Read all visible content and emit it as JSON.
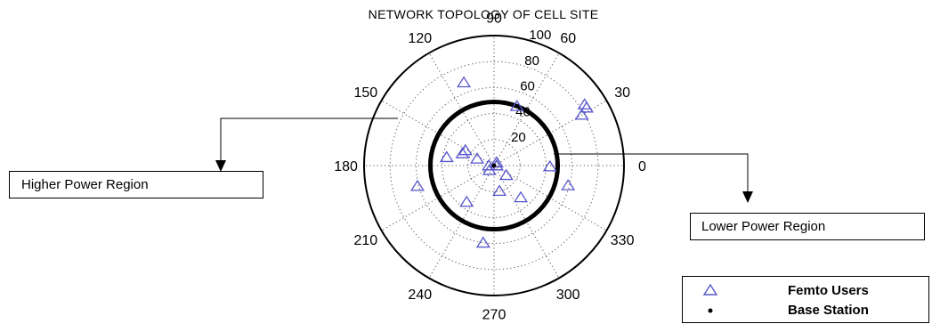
{
  "chart_data": {
    "type": "scatter",
    "projection": "polar",
    "title": "NETWORK TOPOLOGY OF CELL SITE",
    "angle_ticks": [
      "0",
      "30",
      "60",
      "90",
      "120",
      "150",
      "180",
      "210",
      "240",
      "270",
      "300",
      "330"
    ],
    "angle_tick_values": [
      0,
      30,
      60,
      90,
      120,
      150,
      180,
      210,
      240,
      270,
      300,
      330
    ],
    "radial_ticks": [
      "20",
      "40",
      "60",
      "80",
      "100"
    ],
    "radial_tick_values": [
      20,
      40,
      60,
      80,
      100
    ],
    "rlim": [
      0,
      100
    ],
    "grid": true,
    "boundary_circle_radius": 49,
    "series": [
      {
        "name": "Femto Users",
        "marker": "triangle",
        "color": "#5555cc",
        "points": [
          {
            "r": 68,
            "theta": 110
          },
          {
            "r": 26,
            "theta": 159
          },
          {
            "r": 25,
            "theta": 152
          },
          {
            "r": 37,
            "theta": 170
          },
          {
            "r": 14,
            "theta": 158
          },
          {
            "r": 4,
            "theta": 180
          },
          {
            "r": 5,
            "theta": 225
          },
          {
            "r": 3,
            "theta": 50
          },
          {
            "r": 2,
            "theta": 0
          },
          {
            "r": 12,
            "theta": 322
          },
          {
            "r": 35,
            "theta": 233
          },
          {
            "r": 20,
            "theta": 282
          },
          {
            "r": 32,
            "theta": 310
          },
          {
            "r": 60,
            "theta": 262
          },
          {
            "r": 49,
            "theta": 69
          },
          {
            "r": 84,
            "theta": 34
          },
          {
            "r": 84,
            "theta": 32
          },
          {
            "r": 78,
            "theta": 30
          },
          {
            "r": 43,
            "theta": 359
          },
          {
            "r": 59,
            "theta": 345
          },
          {
            "r": 61,
            "theta": 195
          }
        ]
      },
      {
        "name": "Base Station",
        "marker": "dot",
        "color": "#000000",
        "points": [
          {
            "r": 0,
            "theta": 0
          }
        ]
      }
    ],
    "annotations": [
      "Higher Power Region",
      "Lower Power Region"
    ]
  }
}
